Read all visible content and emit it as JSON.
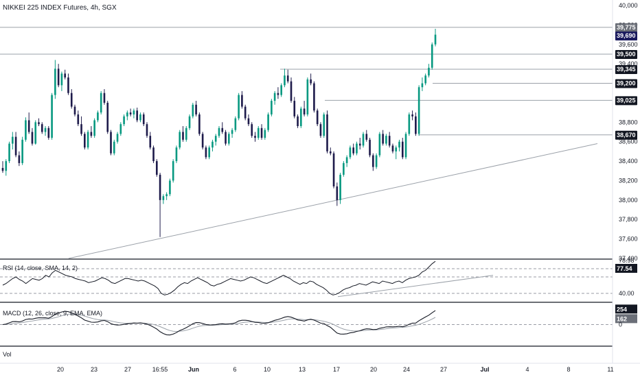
{
  "header": {
    "symbol_title": "NIKKEI 225 INDEX Futures, 4h, SGX"
  },
  "panes": {
    "rsi_label": "RSI (14, close, SMA, 14, 2)",
    "macd_label": "MACD (12, 26, close, 9, EMA, EMA)",
    "vol_label": "Vol"
  },
  "colors": {
    "up": "#089981",
    "down": "#1e1b4b",
    "line": "#9aa0a8",
    "price_tag": "#131722",
    "last_tag": "#1a1a5e",
    "grey_tag": "#6b6f78"
  },
  "chart_data": {
    "type": "candlestick",
    "title": "NIKKEI 225 INDEX Futures, 4h, SGX",
    "price_axis_ticks": [
      "40,000",
      "39,800",
      "39,600",
      "39,400",
      "39,200",
      "38,800",
      "38,600",
      "38,400",
      "38,200",
      "38,000",
      "37,800",
      "37,600",
      "37,400"
    ],
    "ylim": [
      37400,
      40000
    ],
    "date_ticks": [
      "20",
      "23",
      "27",
      "16:55",
      "Jun",
      "6",
      "10",
      "13",
      "17",
      "20",
      "24",
      "27",
      "Jul",
      "4",
      "8",
      "11"
    ],
    "horizontal_levels": [
      {
        "label": "39,775",
        "value": 39775,
        "tag": "grey"
      },
      {
        "label": "39,690",
        "value": 39690,
        "tag": "last"
      },
      {
        "label": "39,500",
        "value": 39500,
        "tag": "dark"
      },
      {
        "label": "39,345",
        "value": 39345,
        "tag": "dark"
      },
      {
        "label": "39,200",
        "value": 39200,
        "tag": "dark"
      },
      {
        "label": "39,025",
        "value": 39025,
        "tag": "dark"
      },
      {
        "label": "38,670",
        "value": 38670,
        "tag": "dark"
      }
    ],
    "trendline": {
      "from": {
        "date": "16:55",
        "value": 37400
      },
      "to": {
        "date": "8",
        "value": 38580
      }
    },
    "ohlc": [
      [
        38330,
        38400,
        38280,
        38300
      ],
      [
        38300,
        38420,
        38250,
        38400
      ],
      [
        38400,
        38600,
        38380,
        38580
      ],
      [
        38580,
        38700,
        38520,
        38650
      ],
      [
        38650,
        38700,
        38440,
        38460
      ],
      [
        38460,
        38500,
        38350,
        38380
      ],
      [
        38380,
        38650,
        38360,
        38620
      ],
      [
        38620,
        38850,
        38600,
        38820
      ],
      [
        38820,
        38900,
        38680,
        38700
      ],
      [
        38700,
        38740,
        38560,
        38580
      ],
      [
        38580,
        38820,
        38570,
        38800
      ],
      [
        38800,
        38840,
        38760,
        38780
      ],
      [
        38780,
        38800,
        38680,
        38700
      ],
      [
        38700,
        38760,
        38660,
        38740
      ],
      [
        38740,
        38760,
        38620,
        38640
      ],
      [
        38640,
        39100,
        38620,
        39080
      ],
      [
        39080,
        39440,
        39040,
        39350
      ],
      [
        39350,
        39400,
        39160,
        39180
      ],
      [
        39180,
        39320,
        39120,
        39300
      ],
      [
        39300,
        39340,
        39240,
        39260
      ],
      [
        39260,
        39300,
        39080,
        39100
      ],
      [
        39100,
        39140,
        38940,
        38960
      ],
      [
        38960,
        38980,
        38860,
        38880
      ],
      [
        38880,
        38920,
        38760,
        38780
      ],
      [
        38780,
        38860,
        38660,
        38680
      ],
      [
        38680,
        38700,
        38520,
        38540
      ],
      [
        38540,
        38720,
        38520,
        38700
      ],
      [
        38700,
        38760,
        38640,
        38660
      ],
      [
        38660,
        38840,
        38640,
        38820
      ],
      [
        38820,
        38920,
        38800,
        38900
      ],
      [
        38900,
        39120,
        38880,
        39100
      ],
      [
        39100,
        39140,
        38980,
        39000
      ],
      [
        39000,
        39020,
        38680,
        38700
      ],
      [
        38700,
        38720,
        38460,
        38480
      ],
      [
        38480,
        38620,
        38460,
        38600
      ],
      [
        38600,
        38700,
        38580,
        38680
      ],
      [
        38680,
        38800,
        38660,
        38780
      ],
      [
        38780,
        38880,
        38760,
        38860
      ],
      [
        38860,
        38920,
        38820,
        38900
      ],
      [
        38900,
        38940,
        38860,
        38880
      ],
      [
        38880,
        38940,
        38840,
        38920
      ],
      [
        38920,
        38950,
        38800,
        38820
      ],
      [
        38820,
        38900,
        38800,
        38880
      ],
      [
        38880,
        38900,
        38760,
        38780
      ],
      [
        38780,
        38800,
        38640,
        38660
      ],
      [
        38660,
        38700,
        38520,
        38540
      ],
      [
        38540,
        38560,
        38380,
        38400
      ],
      [
        38400,
        38420,
        38240,
        38260
      ],
      [
        38260,
        38280,
        37620,
        38000
      ],
      [
        38000,
        38060,
        37960,
        38040
      ],
      [
        38040,
        38080,
        38000,
        38060
      ],
      [
        38060,
        38220,
        38040,
        38200
      ],
      [
        38200,
        38420,
        38180,
        38400
      ],
      [
        38400,
        38560,
        38380,
        38540
      ],
      [
        38540,
        38720,
        38520,
        38700
      ],
      [
        38700,
        38760,
        38600,
        38620
      ],
      [
        38620,
        38760,
        38600,
        38740
      ],
      [
        38740,
        38880,
        38720,
        38860
      ],
      [
        38860,
        39000,
        38840,
        38980
      ],
      [
        38980,
        39020,
        38860,
        38880
      ],
      [
        38880,
        38900,
        38660,
        38680
      ],
      [
        38680,
        38700,
        38520,
        38540
      ],
      [
        38540,
        38560,
        38420,
        38440
      ],
      [
        38440,
        38560,
        38420,
        38540
      ],
      [
        38540,
        38620,
        38500,
        38600
      ],
      [
        38600,
        38680,
        38560,
        38660
      ],
      [
        38660,
        38760,
        38640,
        38740
      ],
      [
        38740,
        38800,
        38680,
        38700
      ],
      [
        38700,
        38720,
        38560,
        38580
      ],
      [
        38580,
        38700,
        38560,
        38680
      ],
      [
        38680,
        38740,
        38640,
        38720
      ],
      [
        38720,
        38860,
        38700,
        38840
      ],
      [
        38840,
        39100,
        38820,
        39080
      ],
      [
        39080,
        39120,
        38940,
        38960
      ],
      [
        38960,
        38980,
        38820,
        38840
      ],
      [
        38840,
        38880,
        38760,
        38780
      ],
      [
        38780,
        38800,
        38640,
        38660
      ],
      [
        38660,
        38700,
        38600,
        38640
      ],
      [
        38640,
        38760,
        38620,
        38740
      ],
      [
        38740,
        38780,
        38620,
        38640
      ],
      [
        38640,
        38740,
        38620,
        38720
      ],
      [
        38720,
        38900,
        38700,
        38880
      ],
      [
        38880,
        39040,
        38860,
        39020
      ],
      [
        39020,
        39120,
        38980,
        39100
      ],
      [
        39100,
        39160,
        39040,
        39080
      ],
      [
        39080,
        39200,
        39060,
        39180
      ],
      [
        39180,
        39350,
        39160,
        39280
      ],
      [
        39280,
        39340,
        39200,
        39220
      ],
      [
        39220,
        39260,
        39000,
        39020
      ],
      [
        39020,
        39060,
        38840,
        38860
      ],
      [
        38860,
        38880,
        38740,
        38760
      ],
      [
        38760,
        38960,
        38740,
        38940
      ],
      [
        38940,
        39020,
        38860,
        38880
      ],
      [
        38880,
        39260,
        38860,
        39240
      ],
      [
        39240,
        39300,
        39180,
        39200
      ],
      [
        39200,
        39220,
        38900,
        38920
      ],
      [
        38920,
        38940,
        38760,
        38780
      ],
      [
        38780,
        38800,
        38640,
        38660
      ],
      [
        38660,
        38900,
        38640,
        38880
      ],
      [
        38880,
        38920,
        38480,
        38500
      ],
      [
        38500,
        38540,
        38460,
        38480
      ],
      [
        38480,
        38500,
        38120,
        38140
      ],
      [
        38140,
        38180,
        37940,
        38000
      ],
      [
        38000,
        38280,
        37960,
        38260
      ],
      [
        38260,
        38400,
        38240,
        38380
      ],
      [
        38380,
        38460,
        38340,
        38440
      ],
      [
        38440,
        38560,
        38420,
        38540
      ],
      [
        38540,
        38580,
        38460,
        38480
      ],
      [
        38480,
        38600,
        38460,
        38580
      ],
      [
        38580,
        38640,
        38520,
        38560
      ],
      [
        38560,
        38700,
        38540,
        38680
      ],
      [
        38680,
        38720,
        38600,
        38620
      ],
      [
        38620,
        38640,
        38440,
        38460
      ],
      [
        38460,
        38480,
        38300,
        38340
      ],
      [
        38340,
        38480,
        38320,
        38460
      ],
      [
        38460,
        38700,
        38440,
        38680
      ],
      [
        38680,
        38720,
        38560,
        38580
      ],
      [
        38580,
        38680,
        38560,
        38660
      ],
      [
        38660,
        38700,
        38540,
        38560
      ],
      [
        38560,
        38580,
        38480,
        38500
      ],
      [
        38500,
        38560,
        38420,
        38540
      ],
      [
        38540,
        38620,
        38500,
        38600
      ],
      [
        38600,
        38640,
        38420,
        38440
      ],
      [
        38440,
        38700,
        38420,
        38680
      ],
      [
        38680,
        38900,
        38660,
        38880
      ],
      [
        38880,
        38920,
        38820,
        38860
      ],
      [
        38860,
        38900,
        38660,
        38680
      ],
      [
        38680,
        39180,
        38660,
        39160
      ],
      [
        39160,
        39260,
        39120,
        39200
      ],
      [
        39200,
        39300,
        39180,
        39280
      ],
      [
        39280,
        39400,
        39260,
        39360
      ],
      [
        39360,
        39620,
        39340,
        39600
      ],
      [
        39600,
        39760,
        39580,
        39700
      ]
    ],
    "rsi": {
      "name": "RSI (14, close, SMA, 14, 2)",
      "value_label": "77.54",
      "top_label": "78.98",
      "axis_label": "40.00",
      "ylim": [
        30,
        80
      ],
      "values": [
        50,
        52,
        55,
        58,
        60,
        57,
        55,
        52,
        55,
        58,
        57,
        56,
        58,
        62,
        60,
        65,
        68,
        66,
        64,
        62,
        61,
        60,
        58,
        57,
        56,
        55,
        53,
        54,
        55,
        57,
        59,
        58,
        56,
        53,
        52,
        54,
        56,
        58,
        58,
        57,
        56,
        55,
        56,
        55,
        53,
        51,
        49,
        46,
        40,
        38,
        39,
        41,
        44,
        48,
        51,
        53,
        52,
        55,
        57,
        59,
        57,
        55,
        53,
        50,
        49,
        51,
        52,
        54,
        56,
        58,
        57,
        56,
        55,
        56,
        58,
        60,
        59,
        57,
        55,
        53,
        52,
        54,
        56,
        58,
        60,
        62,
        60,
        58,
        55,
        53,
        51,
        53,
        52,
        55,
        54,
        51,
        49,
        47,
        44,
        40,
        38,
        39,
        41,
        44,
        46,
        47,
        49,
        50,
        52,
        51,
        50,
        52,
        54,
        53,
        52,
        55,
        54,
        53,
        52,
        54,
        55,
        53,
        56,
        58,
        59,
        60,
        62,
        66,
        68,
        72,
        76,
        79
      ]
    },
    "macd": {
      "name": "MACD (12, 26, close, 9, EMA, EMA)",
      "value_label": "254",
      "signal_label": "162",
      "axis_label": "0",
      "ylim": [
        -350,
        350
      ]
    }
  }
}
